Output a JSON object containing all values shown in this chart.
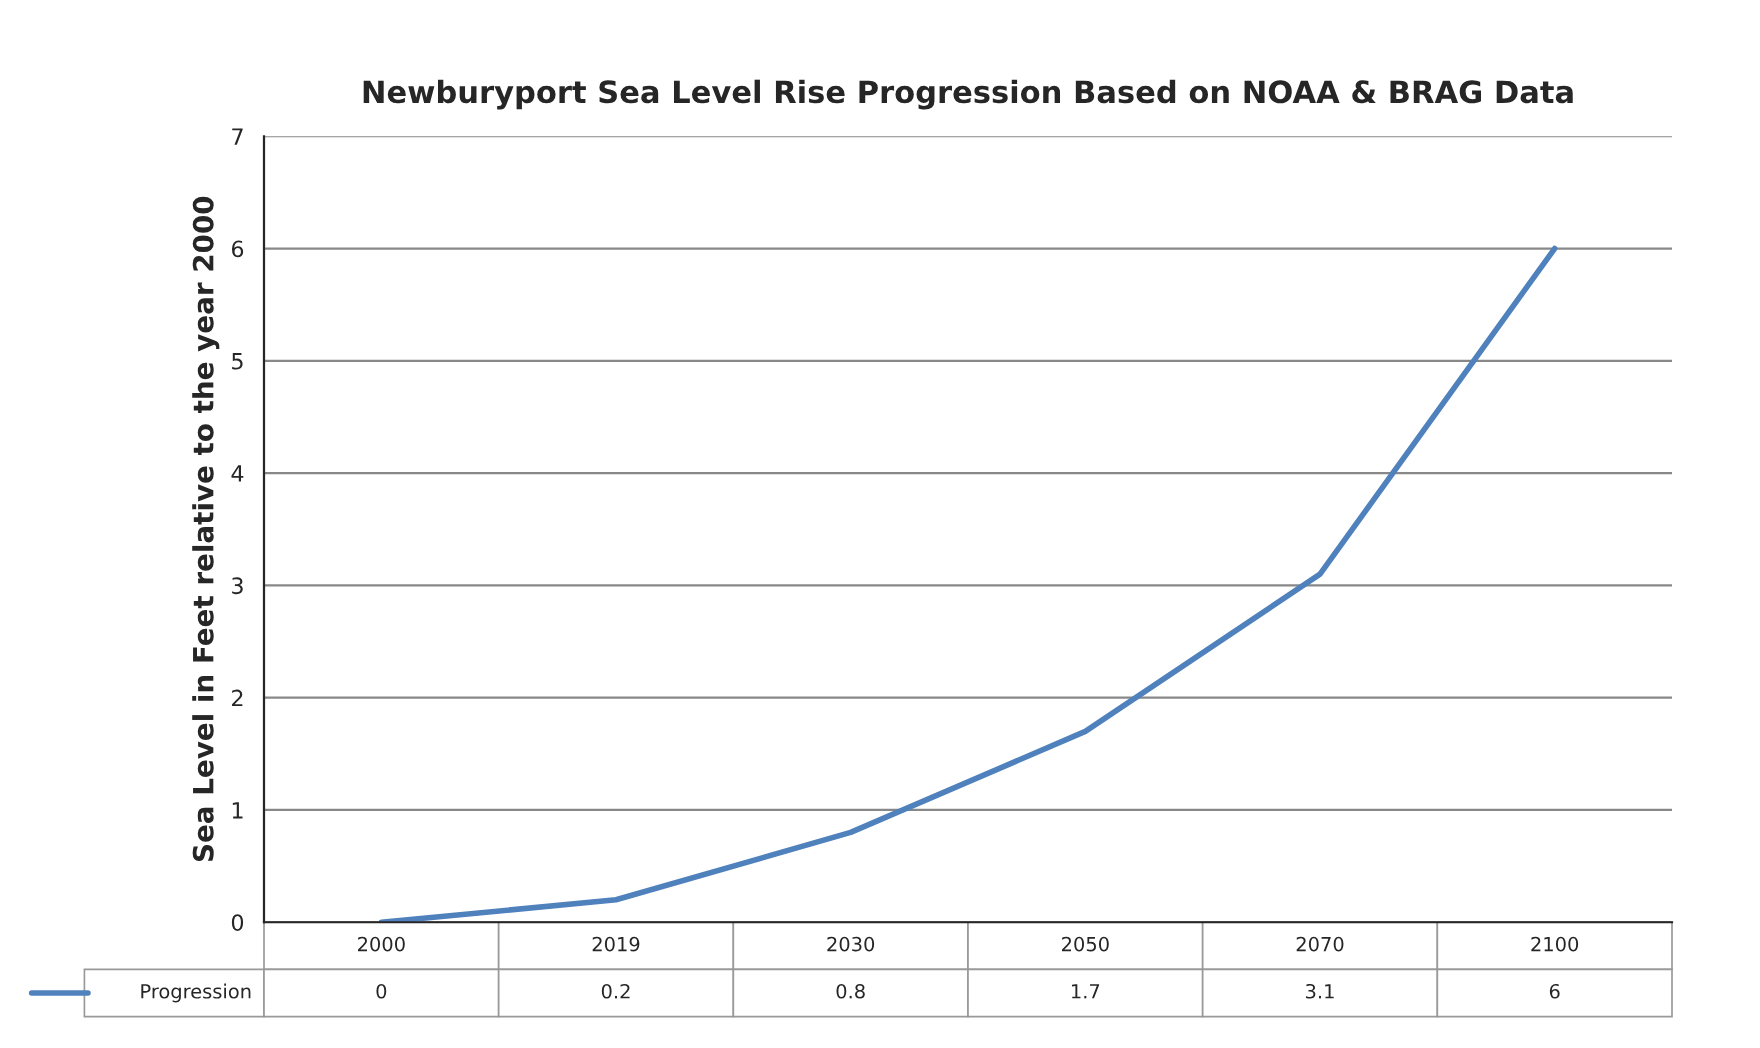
{
  "chart_data": {
    "type": "line",
    "title": "Newburyport Sea Level Rise Progression Based on NOAA & BRAG Data",
    "ylabel": "Sea Level in Feet relative to the year 2000",
    "categories": [
      "2000",
      "2019",
      "2030",
      "2050",
      "2070",
      "2100"
    ],
    "series": [
      {
        "name": "Progression",
        "color": "#4f81bd",
        "values": [
          0,
          0.2,
          0.8,
          1.7,
          3.1,
          6
        ]
      }
    ],
    "ylim": [
      0,
      7
    ],
    "yticks": [
      0,
      1,
      2,
      3,
      4,
      5,
      6,
      7
    ],
    "grid": "y",
    "data_labels": true,
    "legend": "bottom",
    "marker": "none",
    "line_style": "solid"
  }
}
